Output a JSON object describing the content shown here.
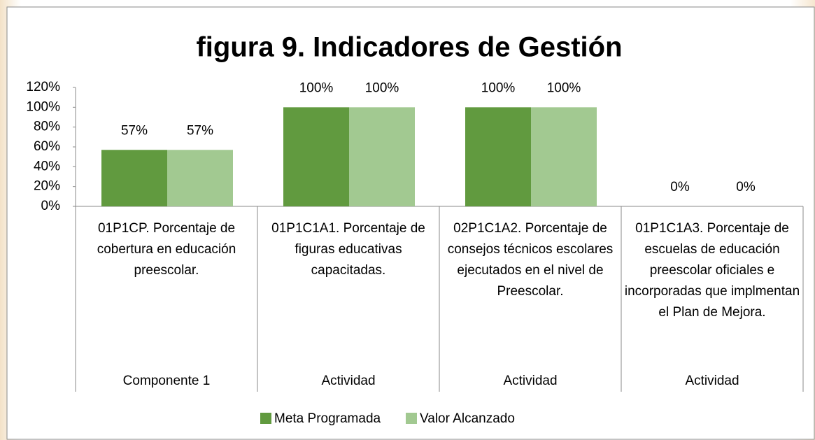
{
  "chart_data": {
    "type": "bar",
    "title": "figura 9. Indicadores de Gestión",
    "categories": [
      "01P1CP. Porcentaje de cobertura  en educación preescolar.",
      "01P1C1A1. Porcentaje de figuras educativas capacitadas.",
      "02P1C1A2. Porcentaje de consejos técnicos escolares ejecutados en el nivel de Preescolar.",
      "01P1C1A3. Porcentaje de escuelas de educación preescolar oficiales e incorporadas que implmentan  el Plan de Mejora."
    ],
    "category_groups": [
      "Componente 1",
      "Actividad",
      "Actividad",
      "Actividad"
    ],
    "series": [
      {
        "name": "Meta Programada",
        "color": "#619a3f",
        "values": [
          57,
          100,
          100,
          0
        ],
        "value_labels": [
          "57%",
          "100%",
          "100%",
          "0%"
        ]
      },
      {
        "name": "Valor Alcanzado",
        "color": "#a2c991",
        "values": [
          57,
          100,
          100,
          0
        ],
        "value_labels": [
          "57%",
          "100%",
          "100%",
          "0%"
        ]
      }
    ],
    "ylim": [
      0,
      120
    ],
    "yticks": [
      {
        "value": 0,
        "label": "0%"
      },
      {
        "value": 20,
        "label": "20%"
      },
      {
        "value": 40,
        "label": "40%"
      },
      {
        "value": 60,
        "label": "60%"
      },
      {
        "value": 80,
        "label": "80%"
      },
      {
        "value": 100,
        "label": "100%"
      },
      {
        "value": 120,
        "label": "120%"
      }
    ],
    "grid": false,
    "legend": "bottom"
  }
}
